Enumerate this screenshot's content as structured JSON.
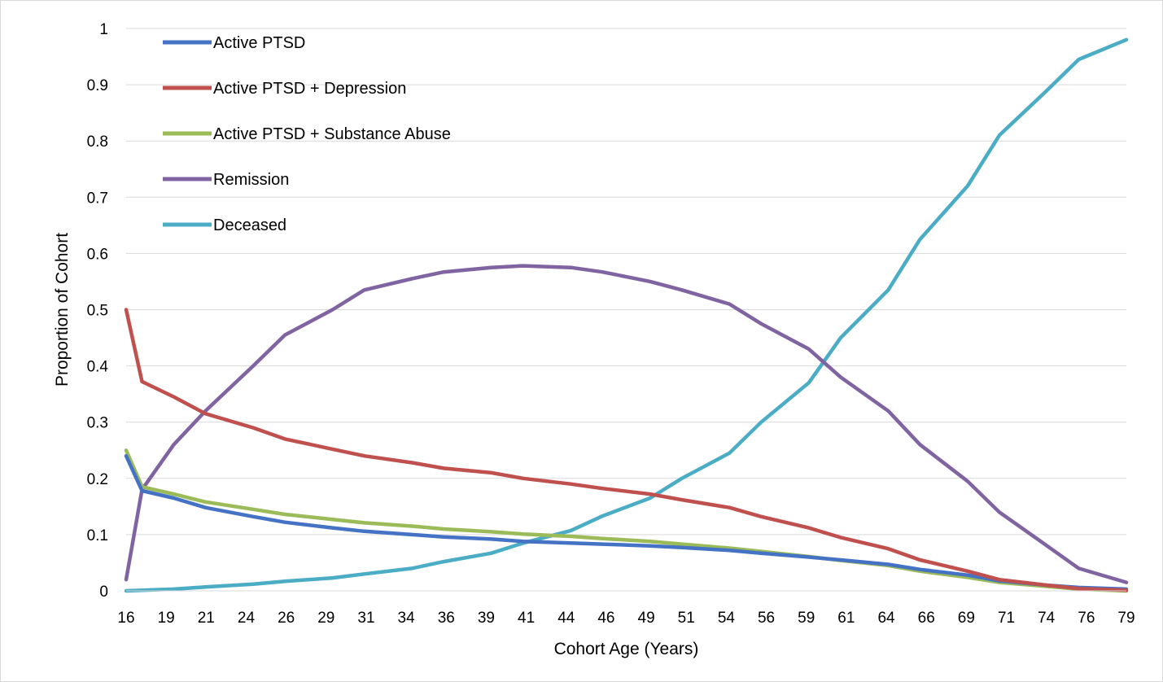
{
  "chart_data": {
    "type": "line",
    "title": "",
    "xlabel": "Cohort Age (Years)",
    "ylabel": "Proportion of Cohort",
    "xlim": [
      16,
      79
    ],
    "ylim": [
      0,
      1
    ],
    "x_tick_labels": [
      "16",
      "19",
      "21",
      "24",
      "26",
      "29",
      "31",
      "34",
      "36",
      "39",
      "41",
      "44",
      "46",
      "49",
      "51",
      "54",
      "56",
      "59",
      "61",
      "64",
      "66",
      "69",
      "71",
      "74",
      "76",
      "79"
    ],
    "y_tick_labels": [
      "0",
      "0.1",
      "0.2",
      "0.3",
      "0.4",
      "0.5",
      "0.6",
      "0.7",
      "0.8",
      "0.9",
      "1"
    ],
    "grid": "horizontal",
    "legend_position": "top-left",
    "series": [
      {
        "name": "Active PTSD",
        "color": "#4472c4",
        "points": [
          [
            16,
            0.24
          ],
          [
            17,
            0.178
          ],
          [
            19,
            0.165
          ],
          [
            21,
            0.148
          ],
          [
            24,
            0.132
          ],
          [
            26,
            0.122
          ],
          [
            29,
            0.112
          ],
          [
            31,
            0.106
          ],
          [
            34,
            0.1
          ],
          [
            36,
            0.096
          ],
          [
            39,
            0.092
          ],
          [
            41,
            0.088
          ],
          [
            44,
            0.085
          ],
          [
            46,
            0.083
          ],
          [
            49,
            0.08
          ],
          [
            51,
            0.077
          ],
          [
            54,
            0.072
          ],
          [
            56,
            0.067
          ],
          [
            59,
            0.06
          ],
          [
            61,
            0.055
          ],
          [
            64,
            0.047
          ],
          [
            66,
            0.038
          ],
          [
            69,
            0.028
          ],
          [
            71,
            0.018
          ],
          [
            74,
            0.01
          ],
          [
            76,
            0.006
          ],
          [
            79,
            0.003
          ]
        ]
      },
      {
        "name": "Active PTSD + Depression",
        "color": "#c0504d",
        "points": [
          [
            16,
            0.5
          ],
          [
            17,
            0.372
          ],
          [
            19,
            0.345
          ],
          [
            21,
            0.315
          ],
          [
            24,
            0.29
          ],
          [
            26,
            0.27
          ],
          [
            29,
            0.252
          ],
          [
            31,
            0.24
          ],
          [
            34,
            0.228
          ],
          [
            36,
            0.218
          ],
          [
            39,
            0.21
          ],
          [
            41,
            0.2
          ],
          [
            44,
            0.19
          ],
          [
            46,
            0.182
          ],
          [
            49,
            0.172
          ],
          [
            51,
            0.162
          ],
          [
            54,
            0.148
          ],
          [
            56,
            0.132
          ],
          [
            59,
            0.112
          ],
          [
            61,
            0.095
          ],
          [
            64,
            0.075
          ],
          [
            66,
            0.055
          ],
          [
            69,
            0.035
          ],
          [
            71,
            0.02
          ],
          [
            74,
            0.01
          ],
          [
            76,
            0.004
          ],
          [
            79,
            0.001
          ]
        ]
      },
      {
        "name": "Active PTSD + Substance Abuse",
        "color": "#9bbb59",
        "points": [
          [
            16,
            0.25
          ],
          [
            17,
            0.185
          ],
          [
            19,
            0.172
          ],
          [
            21,
            0.158
          ],
          [
            24,
            0.145
          ],
          [
            26,
            0.136
          ],
          [
            29,
            0.127
          ],
          [
            31,
            0.121
          ],
          [
            34,
            0.115
          ],
          [
            36,
            0.11
          ],
          [
            39,
            0.105
          ],
          [
            41,
            0.101
          ],
          [
            44,
            0.097
          ],
          [
            46,
            0.093
          ],
          [
            49,
            0.088
          ],
          [
            51,
            0.083
          ],
          [
            54,
            0.076
          ],
          [
            56,
            0.07
          ],
          [
            59,
            0.061
          ],
          [
            61,
            0.054
          ],
          [
            64,
            0.045
          ],
          [
            66,
            0.035
          ],
          [
            69,
            0.024
          ],
          [
            71,
            0.015
          ],
          [
            74,
            0.008
          ],
          [
            76,
            0.003
          ],
          [
            79,
            0.0
          ]
        ]
      },
      {
        "name": "Remission",
        "color": "#8064a2",
        "points": [
          [
            16,
            0.02
          ],
          [
            17,
            0.18
          ],
          [
            19,
            0.26
          ],
          [
            21,
            0.32
          ],
          [
            24,
            0.4
          ],
          [
            26,
            0.455
          ],
          [
            29,
            0.5
          ],
          [
            31,
            0.535
          ],
          [
            34,
            0.555
          ],
          [
            36,
            0.567
          ],
          [
            39,
            0.575
          ],
          [
            41,
            0.578
          ],
          [
            44,
            0.575
          ],
          [
            46,
            0.567
          ],
          [
            49,
            0.55
          ],
          [
            51,
            0.535
          ],
          [
            54,
            0.51
          ],
          [
            56,
            0.475
          ],
          [
            59,
            0.43
          ],
          [
            61,
            0.38
          ],
          [
            64,
            0.32
          ],
          [
            66,
            0.26
          ],
          [
            69,
            0.195
          ],
          [
            71,
            0.14
          ],
          [
            74,
            0.08
          ],
          [
            76,
            0.04
          ],
          [
            79,
            0.015
          ]
        ]
      },
      {
        "name": "Deceased",
        "color": "#4bacc6",
        "points": [
          [
            16,
            0.0
          ],
          [
            19,
            0.003
          ],
          [
            21,
            0.007
          ],
          [
            24,
            0.012
          ],
          [
            26,
            0.017
          ],
          [
            29,
            0.023
          ],
          [
            31,
            0.03
          ],
          [
            34,
            0.04
          ],
          [
            36,
            0.052
          ],
          [
            39,
            0.067
          ],
          [
            41,
            0.085
          ],
          [
            44,
            0.107
          ],
          [
            46,
            0.133
          ],
          [
            49,
            0.165
          ],
          [
            51,
            0.2
          ],
          [
            54,
            0.245
          ],
          [
            56,
            0.3
          ],
          [
            59,
            0.37
          ],
          [
            61,
            0.45
          ],
          [
            64,
            0.535
          ],
          [
            66,
            0.625
          ],
          [
            69,
            0.72
          ],
          [
            71,
            0.81
          ],
          [
            74,
            0.89
          ],
          [
            76,
            0.945
          ],
          [
            79,
            0.98
          ]
        ]
      }
    ]
  }
}
